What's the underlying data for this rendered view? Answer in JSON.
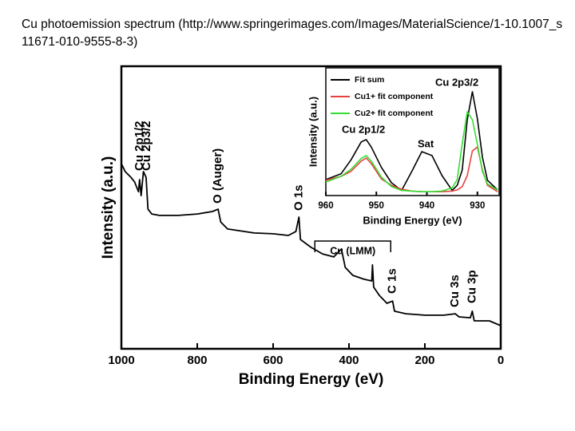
{
  "page_title": "Cu photoemission spectrum (http://www.springerimages.com/Images/MaterialScience/1-10.1007_s11671-010-9555-8-3)",
  "chart_data": [
    {
      "type": "line",
      "xlabel": "Binding Energy (eV)",
      "ylabel": "Intensity (a.u.)",
      "xlim": [
        1000,
        0
      ],
      "xticks": [
        1000,
        800,
        600,
        400,
        200,
        0
      ],
      "ylim": [
        0,
        100
      ],
      "color": "#000000",
      "x": [
        1000,
        990,
        975,
        965,
        955,
        952,
        948,
        942,
        935,
        930,
        920,
        900,
        850,
        800,
        760,
        745,
        738,
        720,
        650,
        600,
        560,
        540,
        532,
        528,
        500,
        470,
        440,
        420,
        410,
        390,
        360,
        340,
        338,
        335,
        320,
        300,
        285,
        280,
        250,
        200,
        150,
        120,
        110,
        80,
        75,
        70,
        30,
        0
      ],
      "values": [
        65.5,
        62.7,
        60.7,
        59,
        55.6,
        59.9,
        54.2,
        62.7,
        60.7,
        49.4,
        47.7,
        47.2,
        47.2,
        47.7,
        48.6,
        49.4,
        44.9,
        42.4,
        41,
        40.7,
        40.1,
        41.5,
        46.6,
        38.7,
        35.9,
        33.6,
        32.5,
        35.3,
        28.8,
        26,
        24.6,
        24,
        29.7,
        21.8,
        18.9,
        16.1,
        16.9,
        13.3,
        12.4,
        11.9,
        11.9,
        12.4,
        11.3,
        11,
        13.3,
        9.9,
        9.9,
        8.2
      ],
      "annotations": [
        {
          "text": "Cu 2p1/2",
          "x": 952
        },
        {
          "text": "Cu 2p3/2",
          "x": 933
        },
        {
          "text": "O (Auger)",
          "x": 745
        },
        {
          "text": "O 1s",
          "x": 532
        },
        {
          "text": "Cu (LMM)",
          "x": [
            490,
            290
          ]
        },
        {
          "text": "C 1s",
          "x": 285
        },
        {
          "text": "Cu 3s",
          "x": 120
        },
        {
          "text": "Cu 3p",
          "x": 75
        }
      ]
    },
    {
      "type": "line",
      "xlabel": "Binding Energy (eV)",
      "ylabel": "Intensity (a.u.)",
      "xlim": [
        960,
        925.7
      ],
      "xticks": [
        960,
        950,
        940,
        930
      ],
      "ylim": [
        0,
        100
      ],
      "legend": "upper left",
      "x": [
        960,
        957,
        955,
        953,
        952,
        951,
        949,
        947,
        945,
        943,
        941,
        939,
        937,
        935,
        934,
        933,
        932,
        931,
        930,
        929,
        928,
        926
      ],
      "series": [
        {
          "name": "Fit sum",
          "color": "#000000",
          "values": [
            12.5,
            17,
            28,
            42,
            43.8,
            38,
            22,
            10,
            4,
            18.8,
            34.4,
            31.3,
            15.6,
            4,
            8,
            20,
            59.4,
            81.3,
            60,
            30,
            12,
            4.4
          ]
        },
        {
          "name": "Cu1+ fit component",
          "color": "#e8413c",
          "values": [
            12,
            15,
            19,
            27,
            29.4,
            25,
            13,
            8,
            5,
            3.5,
            3,
            3,
            3,
            3.5,
            4.4,
            7,
            15.6,
            35,
            38,
            20,
            8,
            3
          ]
        },
        {
          "name": "Cu2+ fit component",
          "color": "#33dd33",
          "values": [
            10.6,
            15,
            20.6,
            29,
            31.3,
            27,
            14.4,
            7,
            4,
            3.5,
            3,
            3,
            3.5,
            6,
            12.5,
            40.6,
            65.6,
            59.4,
            40,
            18.8,
            9,
            4.4
          ]
        }
      ],
      "annotations": [
        {
          "text": "Cu 2p3/2",
          "x": 932
        },
        {
          "text": "Cu 2p1/2",
          "x": 952
        },
        {
          "text": "Sat",
          "x": 940
        }
      ]
    }
  ]
}
